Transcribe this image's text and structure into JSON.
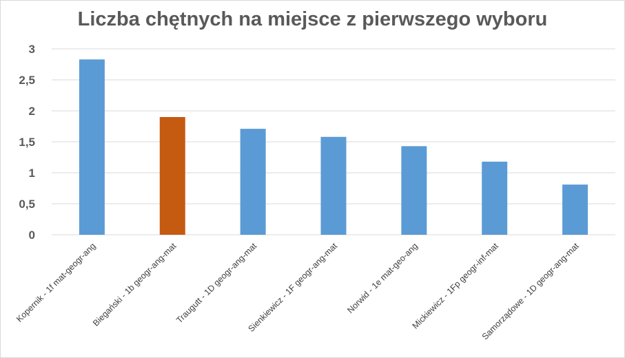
{
  "chart_data": {
    "type": "bar",
    "title": "Liczba chętnych na miejsce z pierwszego wyboru",
    "categories": [
      "Kopernik - 1f mat-geogr-ang",
      "Biegański - 1b geogr-ang-mat",
      "Traugutt - 1D geogr-ang-mat",
      "Sienkiewicz - 1F geogr-ang-mat",
      "Norwid - 1e mat-geo-ang",
      "Mickiewicz - 1Fp geogr-inf-mat",
      "Samorządowe - 1D geogr-ang-mat"
    ],
    "values": [
      2.83,
      1.9,
      1.71,
      1.58,
      1.43,
      1.18,
      0.81
    ],
    "ylim": [
      0,
      3
    ],
    "yticks": [
      "0",
      "0,5",
      "1",
      "1,5",
      "2",
      "2,5",
      "3"
    ],
    "grid": true,
    "colors": [
      "#5b9bd5",
      "#c55a11",
      "#5b9bd5",
      "#5b9bd5",
      "#5b9bd5",
      "#5b9bd5",
      "#5b9bd5"
    ],
    "gridColor": "#d9d9d9"
  }
}
